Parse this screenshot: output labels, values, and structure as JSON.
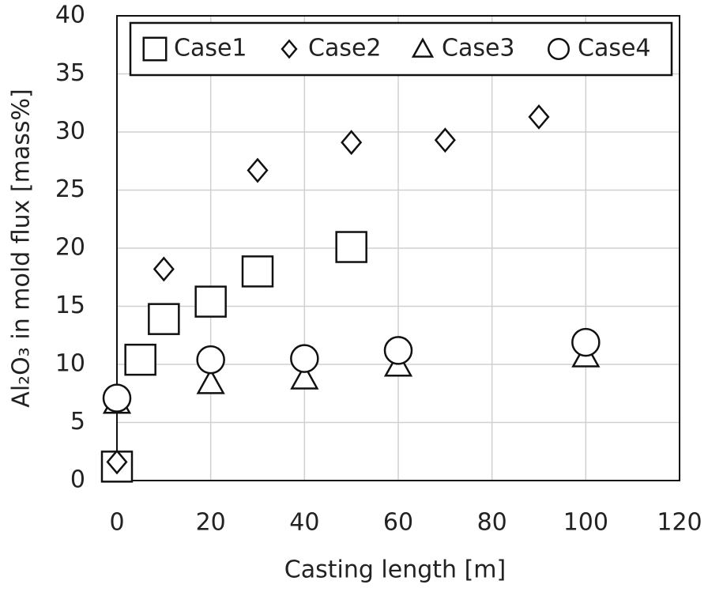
{
  "chart_data": {
    "type": "scatter",
    "xlabel": "Casting length [m]",
    "ylabel": "Al₂O₃ in mold flux [mass%]",
    "xlim": [
      0,
      120
    ],
    "xticks": [
      0,
      20,
      40,
      60,
      80,
      100,
      120
    ],
    "ylim": [
      0,
      40
    ],
    "yticks": [
      0,
      5,
      10,
      15,
      20,
      25,
      30,
      35,
      40
    ],
    "grid": true,
    "legend": "top",
    "series": [
      {
        "name": "Case1",
        "marker": "square",
        "color": "#111111",
        "x": [
          0,
          5,
          10,
          20,
          30,
          50
        ],
        "values": [
          1.2,
          10.4,
          13.9,
          15.4,
          18.0,
          20.1
        ]
      },
      {
        "name": "Case2",
        "marker": "diamond",
        "color": "#111111",
        "x": [
          0,
          10,
          30,
          50,
          70,
          90
        ],
        "values": [
          1.6,
          18.2,
          26.7,
          29.1,
          29.3,
          31.3
        ]
      },
      {
        "name": "Case3",
        "marker": "triangle",
        "color": "#111111",
        "x": [
          0,
          20,
          40,
          60,
          100
        ],
        "values": [
          6.7,
          8.4,
          8.8,
          9.9,
          10.7
        ]
      },
      {
        "name": "Case4",
        "marker": "circle",
        "color": "#111111",
        "x": [
          0,
          20,
          40,
          60,
          100
        ],
        "values": [
          7.1,
          10.4,
          10.5,
          11.2,
          11.9
        ]
      }
    ]
  }
}
